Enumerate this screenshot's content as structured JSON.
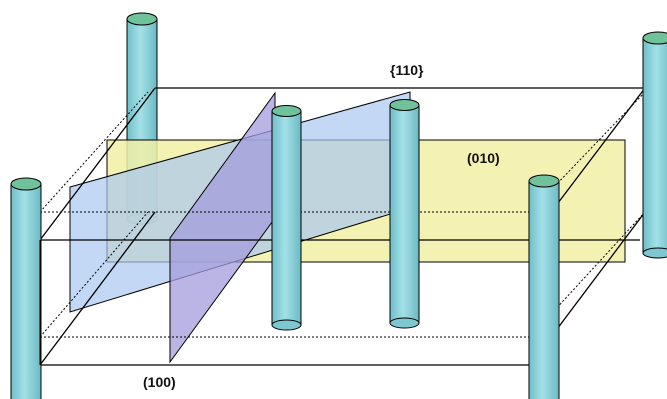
{
  "labels": {
    "plane_110": "{110}",
    "plane_010": "(010)",
    "plane_100": "(100)"
  },
  "colors": {
    "plane_010_fill": "#f2f0a6",
    "plane_110_fill": "#a9c8f0",
    "plane_100_fill": "#a49cdc",
    "pillar_body": "#8fd3dc",
    "pillar_top": "#6fc29a",
    "edge": "#000000"
  }
}
